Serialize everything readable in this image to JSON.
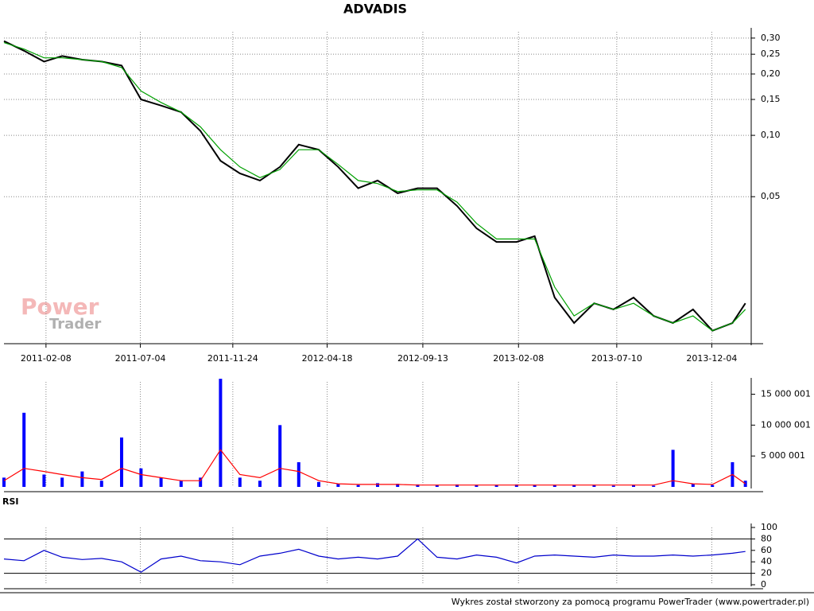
{
  "title": "ADVADIS",
  "watermark": [
    "Power",
    "Trader"
  ],
  "footer": "Wykres został stworzony za pomocą programu PowerTrader (www.powertrader.pl)",
  "chart_data": [
    {
      "type": "line",
      "ylog": true,
      "grid": true,
      "x": [
        "2010-12-05",
        "2011-01-05",
        "2011-02-05",
        "2011-03-05",
        "2011-04-05",
        "2011-05-05",
        "2011-06-05",
        "2011-07-05",
        "2011-08-05",
        "2011-09-05",
        "2011-10-05",
        "2011-11-05",
        "2011-12-05",
        "2012-01-05",
        "2012-02-05",
        "2012-03-05",
        "2012-04-05",
        "2012-05-05",
        "2012-06-05",
        "2012-07-05",
        "2012-08-05",
        "2012-09-05",
        "2012-10-05",
        "2012-11-05",
        "2012-12-05",
        "2013-01-05",
        "2013-02-05",
        "2013-03-05",
        "2013-04-05",
        "2013-05-05",
        "2013-06-05",
        "2013-07-05",
        "2013-08-05",
        "2013-09-05",
        "2013-10-05",
        "2013-11-05",
        "2013-12-05",
        "2014-01-05",
        "2014-01-25"
      ],
      "xlim": [
        "2010-12-05",
        "2014-02-03"
      ],
      "xticks": [
        "2011-02-08",
        "2011-07-04",
        "2011-11-24",
        "2012-04-18",
        "2012-09-13",
        "2013-02-08",
        "2013-07-10",
        "2013-12-04"
      ],
      "ylim": [
        0.0095,
        0.322
      ],
      "yticks": [
        {
          "value": 0.05,
          "label": "0,05"
        },
        {
          "value": 0.1,
          "label": "0,10"
        },
        {
          "value": 0.15,
          "label": "0,15"
        },
        {
          "value": 0.2,
          "label": "0,20"
        },
        {
          "value": 0.25,
          "label": "0,25"
        },
        {
          "value": 0.3,
          "label": "0,30"
        }
      ],
      "series": [
        {
          "color": "#000000",
          "values": [
            0.29,
            0.26,
            0.23,
            0.245,
            0.235,
            0.23,
            0.22,
            0.15,
            0.14,
            0.13,
            0.105,
            0.075,
            0.065,
            0.06,
            0.07,
            0.09,
            0.085,
            0.07,
            0.055,
            0.06,
            0.052,
            0.055,
            0.055,
            0.045,
            0.035,
            0.03,
            0.03,
            0.032,
            0.016,
            0.012,
            0.015,
            0.014,
            0.016,
            0.013,
            0.012,
            0.014,
            0.011,
            0.012,
            0.015
          ]
        },
        {
          "color": "#00a000",
          "values": [
            0.285,
            0.265,
            0.24,
            0.24,
            0.235,
            0.23,
            0.215,
            0.165,
            0.145,
            0.13,
            0.11,
            0.085,
            0.07,
            0.062,
            0.068,
            0.085,
            0.085,
            0.072,
            0.06,
            0.058,
            0.053,
            0.054,
            0.054,
            0.047,
            0.037,
            0.031,
            0.031,
            0.031,
            0.018,
            0.013,
            0.015,
            0.014,
            0.015,
            0.013,
            0.012,
            0.013,
            0.011,
            0.012,
            0.014
          ]
        }
      ]
    },
    {
      "type": "bar",
      "grid": true,
      "ylim": [
        0,
        17000000
      ],
      "yticks": [
        {
          "value": 5000001,
          "label": "5 000 001"
        },
        {
          "value": 10000001,
          "label": "10 000 001"
        },
        {
          "value": 15000001,
          "label": "15 000 001"
        }
      ],
      "series": [
        {
          "color": "#0000ff",
          "values": [
            1500000,
            12000000,
            2000000,
            1500000,
            2500000,
            1000000,
            8000000,
            3000000,
            1500000,
            1000000,
            1500000,
            17500000,
            1500000,
            1000000,
            10000000,
            4000000,
            800000,
            500000,
            300000,
            600000,
            500000,
            400000,
            300000,
            400000,
            300000,
            300000,
            400000,
            300000,
            300000,
            300000,
            300000,
            200000,
            300000,
            200000,
            6000000,
            500000,
            300000,
            4000000,
            1000000
          ]
        },
        {
          "type": "line",
          "color": "#ff0000",
          "values": [
            1000000,
            3000000,
            2500000,
            2000000,
            1500000,
            1200000,
            3000000,
            2000000,
            1500000,
            1000000,
            1000000,
            6000000,
            2000000,
            1500000,
            3000000,
            2500000,
            1000000,
            500000,
            400000,
            400000,
            400000,
            300000,
            300000,
            300000,
            300000,
            300000,
            300000,
            300000,
            300000,
            300000,
            300000,
            300000,
            300000,
            300000,
            1000000,
            500000,
            400000,
            2000000,
            500000
          ]
        }
      ]
    },
    {
      "type": "line",
      "title": "RSI",
      "grid": true,
      "ylim": [
        0,
        100
      ],
      "yticks": [
        0,
        20,
        40,
        60,
        80,
        100
      ],
      "reference_lines": [
        20,
        80
      ],
      "series": [
        {
          "color": "#0000cc",
          "values": [
            45,
            42,
            60,
            48,
            44,
            46,
            40,
            22,
            45,
            50,
            42,
            40,
            35,
            50,
            55,
            62,
            50,
            45,
            48,
            45,
            50,
            80,
            48,
            45,
            52,
            48,
            38,
            50,
            52,
            50,
            48,
            52,
            50,
            50,
            52,
            50,
            52,
            55,
            58
          ]
        }
      ]
    }
  ]
}
